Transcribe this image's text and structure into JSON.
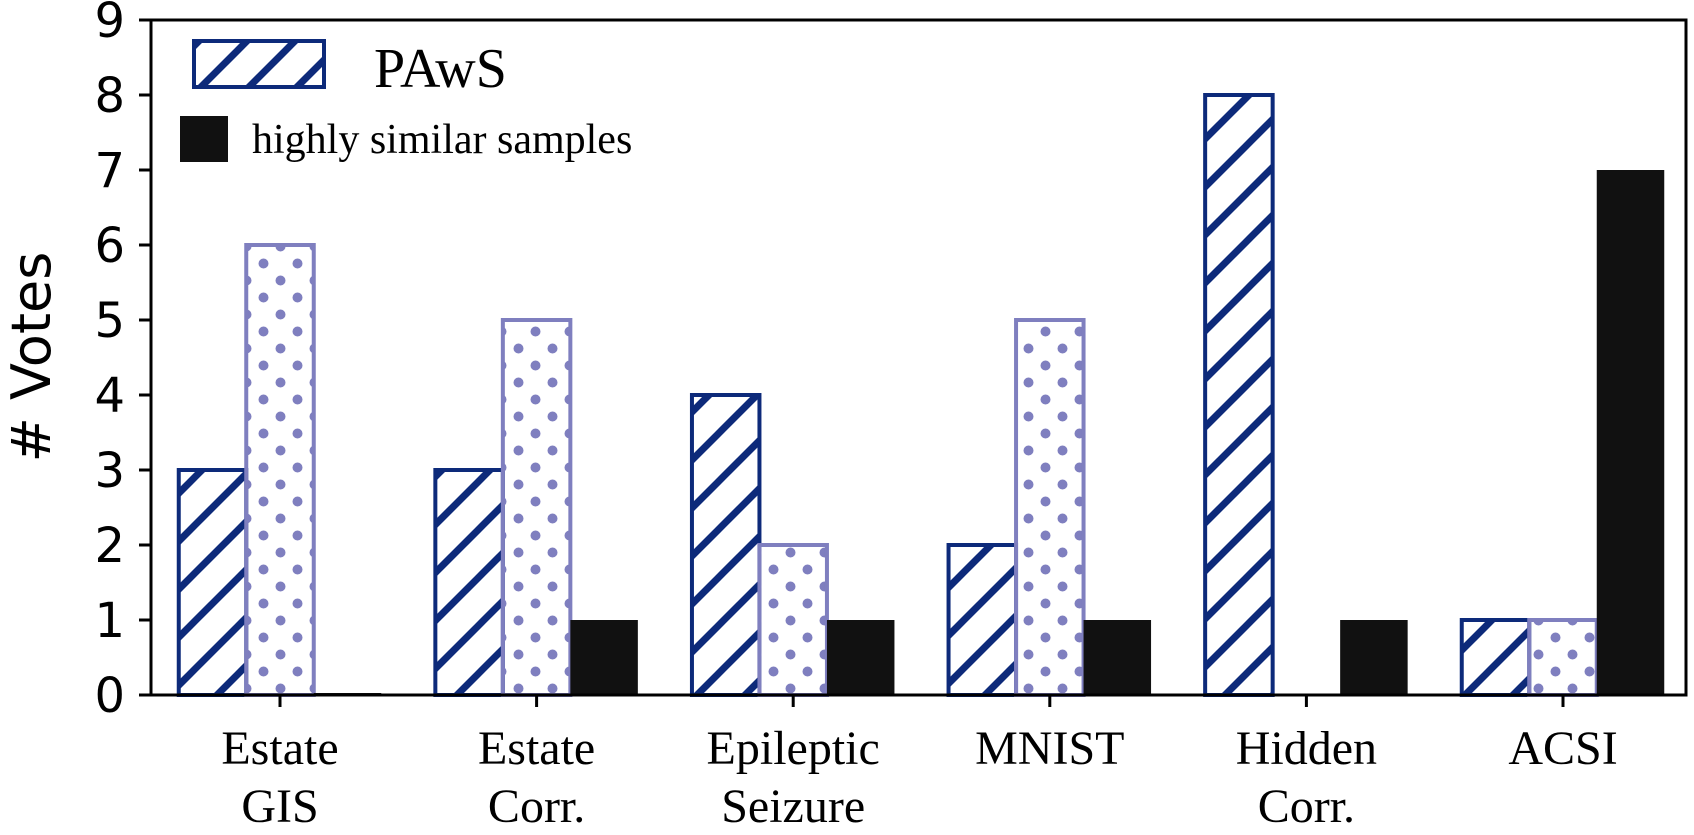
{
  "chart_data": {
    "type": "bar",
    "title": "",
    "xlabel": "",
    "ylabel": "# Votes",
    "ylim": [
      0,
      9
    ],
    "yticks": [
      "0",
      "1",
      "2",
      "3",
      "4",
      "5",
      "6",
      "7",
      "8",
      "9"
    ],
    "categories": [
      [
        "Estate",
        "GIS"
      ],
      [
        "Estate",
        "Corr."
      ],
      [
        "Epileptic",
        "Seizure"
      ],
      [
        "MNIST"
      ],
      [
        "Hidden",
        "Corr."
      ],
      [
        "ACSI"
      ]
    ],
    "series": [
      {
        "name": "PAwS",
        "values": [
          3,
          3,
          4,
          2,
          8,
          1
        ],
        "pattern": "hatch",
        "color": "#0d2a7a",
        "in_legend": true
      },
      {
        "name": "",
        "values": [
          6,
          5,
          2,
          5,
          0,
          1
        ],
        "pattern": "dots",
        "color": "#7f7fbf",
        "in_legend": false
      },
      {
        "name": "highly similar samples",
        "values": [
          0,
          1,
          1,
          1,
          1,
          7
        ],
        "pattern": "solid",
        "color": "#111111",
        "in_legend": true
      }
    ],
    "legend_position": "top-left",
    "grid": false
  }
}
